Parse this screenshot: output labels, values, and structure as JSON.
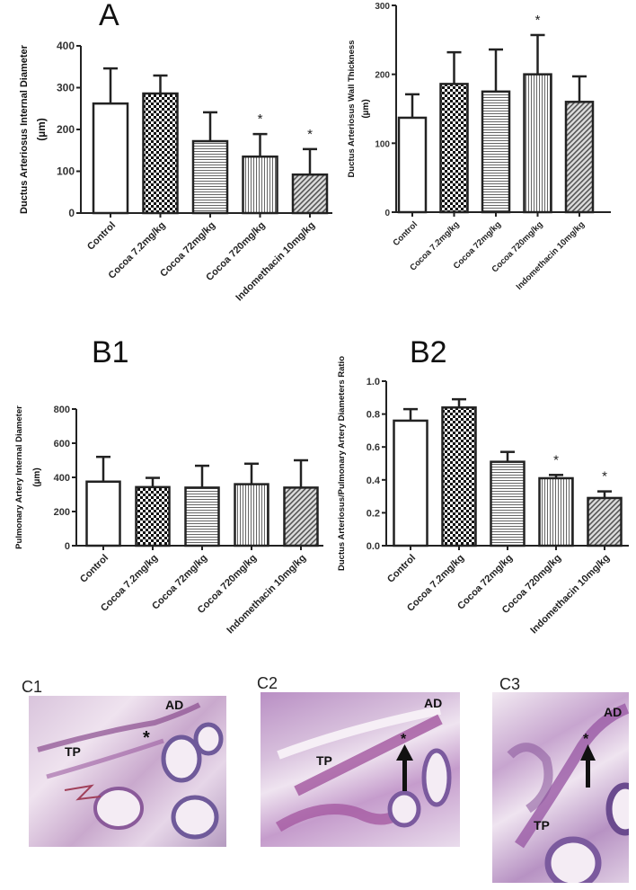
{
  "categories": [
    "Control",
    "Cocoa 7.2mg/kg",
    "Cocoa 72mg/kg",
    "Cocoa 720mg/kg",
    "Indomethacin 10mg/kg"
  ],
  "patterns": [
    "open",
    "checker",
    "hlines",
    "vlines",
    "diagonal"
  ],
  "panels": {
    "A": {
      "letter": "A"
    },
    "B1": {
      "letter": "B1"
    },
    "B2": {
      "letter": "B2"
    },
    "C1": {
      "letter": "C1",
      "labels": {
        "tp": "TP",
        "ad": "AD",
        "mark": "*"
      }
    },
    "C2": {
      "letter": "C2",
      "labels": {
        "tp": "TP",
        "ad": "AD",
        "mark": "*"
      }
    },
    "C3": {
      "letter": "C3",
      "labels": {
        "tp": "TP",
        "ad": "AD",
        "mark": "*"
      }
    }
  },
  "chart_data": [
    {
      "id": "A-left",
      "type": "bar",
      "title": "A",
      "categories": [
        "Control",
        "Cocoa 7.2mg/kg",
        "Cocoa 72mg/kg",
        "Cocoa 720mg/kg",
        "Indomethacin 10mg/kg"
      ],
      "values": [
        262,
        286,
        172,
        135,
        92
      ],
      "error_upper": [
        346,
        329,
        241,
        189,
        153
      ],
      "significance": [
        "",
        "",
        "",
        "*",
        "*"
      ],
      "ylabel": "Ductus Arteriosus Internal Diameter",
      "yunit": "(µm)",
      "ylim": [
        0,
        400
      ],
      "yticks": [
        0,
        100,
        200,
        300,
        400
      ],
      "grid": false,
      "legend": "none"
    },
    {
      "id": "A-right",
      "type": "bar",
      "title": "",
      "categories": [
        "Control",
        "Cocoa 7.2mg/kg",
        "Cocoa 72mg/kg",
        "Cocoa 720mg/kg",
        "Indomethacin 10mg/kg"
      ],
      "values": [
        137,
        186,
        175,
        200,
        160
      ],
      "error_upper": [
        171,
        232,
        236,
        257,
        197
      ],
      "significance": [
        "",
        "",
        "",
        "*",
        ""
      ],
      "ylabel": "Ductus Arteriosus Wall Thickness",
      "yunit": "(µm)",
      "ylim": [
        0,
        300
      ],
      "yticks": [
        0,
        100,
        200,
        300
      ],
      "grid": false,
      "legend": "none"
    },
    {
      "id": "B1",
      "type": "bar",
      "title": "B1",
      "categories": [
        "Control",
        "Cocoa 7.2mg/kg",
        "Cocoa 72mg/kg",
        "Cocoa 720mg/kg",
        "Indomethacin 10mg/kg"
      ],
      "values": [
        375,
        343,
        340,
        360,
        340
      ],
      "error_upper": [
        520,
        397,
        468,
        480,
        500
      ],
      "significance": [
        "",
        "",
        "",
        "",
        ""
      ],
      "ylabel": "Pulmonary Artery Internal Diameter",
      "yunit": "(µm)",
      "ylim": [
        0,
        800
      ],
      "yticks": [
        0,
        200,
        400,
        600,
        800
      ],
      "grid": false,
      "legend": "none"
    },
    {
      "id": "B2",
      "type": "bar",
      "title": "B2",
      "categories": [
        "Control",
        "Cocoa 7.2mg/kg",
        "Cocoa 72mg/kg",
        "Cocoa 720mg/kg",
        "Indomethacin 10mg/kg"
      ],
      "values": [
        0.76,
        0.84,
        0.51,
        0.41,
        0.29
      ],
      "error_upper": [
        0.83,
        0.89,
        0.57,
        0.43,
        0.33
      ],
      "significance": [
        "",
        "",
        "",
        "*",
        "*"
      ],
      "ylabel": "Ductus Arteriosus/Pulmonary Artery Diameters Ratio",
      "yunit": "",
      "ylim": [
        0,
        1.0
      ],
      "yticks": [
        "0.0",
        "0.2",
        "0.4",
        "0.6",
        "0.8",
        "1.0"
      ],
      "grid": false,
      "legend": "none"
    }
  ]
}
